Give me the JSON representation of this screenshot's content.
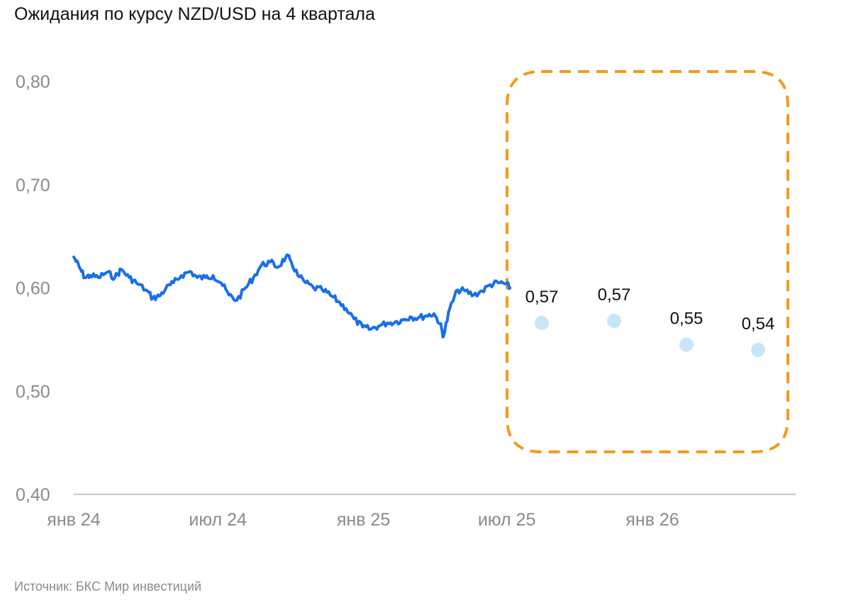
{
  "title": "Ожидания по курсу NZD/USD на 4 квартала",
  "source": "Источник: БКС Мир инвестиций",
  "colors": {
    "line": "#1a6fe8",
    "forecast_points": "#c8e6f7",
    "highlight_box": "#f39a1c",
    "axis": "#c8c8c8",
    "tick_text": "#8a8a8a"
  },
  "chart_data": {
    "type": "line",
    "title": "Ожидания по курсу NZD/USD на 4 квартала",
    "xlabel": "",
    "ylabel": "",
    "ylim": [
      0.4,
      0.8
    ],
    "yticks": [
      "0,80",
      "0,70",
      "0,60",
      "0,50",
      "0,40"
    ],
    "xticks": [
      "янв 24",
      "июл 24",
      "янв 25",
      "июл 25",
      "янв 26"
    ],
    "grid": false,
    "series": [
      {
        "kind": "line",
        "x": [
          "2024-01-01",
          "2024-01-08",
          "2024-01-15",
          "2024-01-22",
          "2024-02-01",
          "2024-02-12",
          "2024-02-22",
          "2024-03-01",
          "2024-03-11",
          "2024-03-20",
          "2024-04-01",
          "2024-04-10",
          "2024-04-18",
          "2024-04-26",
          "2024-05-06",
          "2024-05-16",
          "2024-05-27",
          "2024-06-05",
          "2024-06-15",
          "2024-06-25",
          "2024-07-05",
          "2024-07-15",
          "2024-07-25",
          "2024-08-05",
          "2024-08-15",
          "2024-08-25",
          "2024-09-05",
          "2024-09-15",
          "2024-09-25",
          "2024-09-30",
          "2024-10-10",
          "2024-10-20",
          "2024-10-30",
          "2024-11-10",
          "2024-11-20",
          "2024-11-30",
          "2024-12-10",
          "2024-12-20",
          "2024-12-31",
          "2025-01-10",
          "2025-01-20",
          "2025-01-31",
          "2025-02-10",
          "2025-02-20",
          "2025-03-01",
          "2025-03-11",
          "2025-03-21",
          "2025-03-31",
          "2025-04-08",
          "2025-04-12",
          "2025-04-20",
          "2025-04-30",
          "2025-05-10",
          "2025-05-20",
          "2025-05-31",
          "2025-06-10",
          "2025-06-20",
          "2025-06-30",
          "2025-07-05"
        ],
        "y": [
          0.63,
          0.62,
          0.61,
          0.612,
          0.61,
          0.615,
          0.61,
          0.618,
          0.61,
          0.605,
          0.598,
          0.59,
          0.592,
          0.599,
          0.605,
          0.612,
          0.616,
          0.61,
          0.61,
          0.612,
          0.605,
          0.593,
          0.588,
          0.6,
          0.61,
          0.622,
          0.625,
          0.62,
          0.63,
          0.628,
          0.612,
          0.605,
          0.6,
          0.598,
          0.593,
          0.587,
          0.58,
          0.57,
          0.562,
          0.56,
          0.563,
          0.566,
          0.567,
          0.569,
          0.572,
          0.571,
          0.573,
          0.575,
          0.565,
          0.553,
          0.58,
          0.598,
          0.597,
          0.593,
          0.597,
          0.603,
          0.605,
          0.604,
          0.6
        ]
      },
      {
        "kind": "points",
        "x": [
          "2025-09-30",
          "2025-12-31",
          "2026-03-31",
          "2026-06-30"
        ],
        "y": [
          0.566,
          0.568,
          0.545,
          0.54
        ],
        "labels": [
          "0,57",
          "0,57",
          "0,55",
          "0,54"
        ]
      }
    ]
  }
}
